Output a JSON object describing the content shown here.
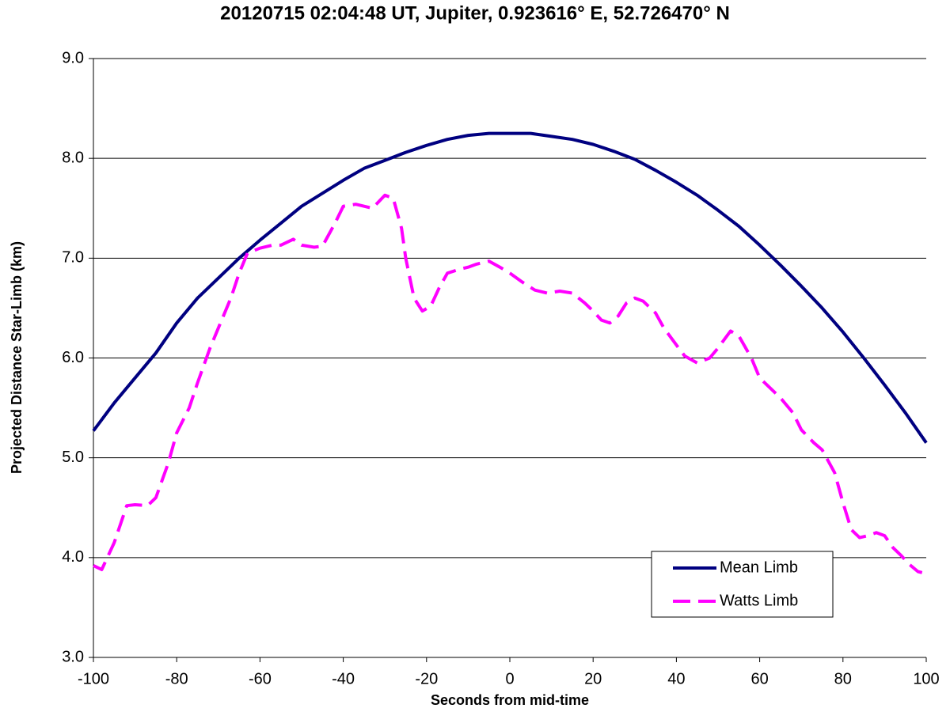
{
  "chart_data": {
    "type": "line",
    "title": "20120715 02:04:48 UT, Jupiter, 0.923616° E, 52.726470° N",
    "x_label": "Seconds from mid-time",
    "y_label": "Projected Distance Star-Limb (km)",
    "xlim": [
      -100,
      100
    ],
    "xticks": [
      -100,
      -80,
      -60,
      -40,
      -20,
      0,
      20,
      40,
      60,
      80,
      100
    ],
    "ylim": [
      3,
      9
    ],
    "yticks": [
      {
        "value": 3,
        "label": "3.0"
      },
      {
        "value": 4,
        "label": "4.0"
      },
      {
        "value": 5,
        "label": "5.0"
      },
      {
        "value": 6,
        "label": "6.0"
      },
      {
        "value": 7,
        "label": "7.0"
      },
      {
        "value": 8,
        "label": "8.0"
      },
      {
        "value": 9,
        "label": "9.0"
      }
    ],
    "grid": true,
    "legend": "lower right",
    "series": [
      {
        "name": "Mean Limb",
        "color": "#000080",
        "dash": false,
        "x": [
          -100,
          -95,
          -90,
          -85,
          -80,
          -75,
          -70,
          -65,
          -60,
          -55,
          -50,
          -45,
          -40,
          -35,
          -30,
          -25,
          -20,
          -15,
          -10,
          -5,
          0,
          5,
          10,
          15,
          20,
          25,
          30,
          35,
          40,
          45,
          50,
          55,
          60,
          65,
          70,
          75,
          80,
          85,
          90,
          95,
          100
        ],
        "values": [
          5.27,
          5.55,
          5.8,
          6.05,
          6.35,
          6.6,
          6.8,
          7.0,
          7.18,
          7.35,
          7.52,
          7.65,
          7.78,
          7.9,
          7.98,
          8.06,
          8.13,
          8.19,
          8.23,
          8.25,
          8.25,
          8.25,
          8.22,
          8.19,
          8.14,
          8.07,
          7.99,
          7.88,
          7.76,
          7.63,
          7.48,
          7.32,
          7.13,
          6.93,
          6.72,
          6.5,
          6.26,
          6.0,
          5.73,
          5.45,
          5.15
        ]
      },
      {
        "name": "Watts Limb",
        "color": "#ff00ff",
        "dash": true,
        "x": [
          -100,
          -98,
          -95,
          -92,
          -90,
          -87,
          -85,
          -82,
          -80,
          -77,
          -75,
          -72,
          -70,
          -67,
          -65,
          -63,
          -60,
          -57,
          -55,
          -52,
          -50,
          -47,
          -45,
          -42,
          -40,
          -37,
          -35,
          -33,
          -30,
          -28,
          -26,
          -25,
          -23,
          -21,
          -19,
          -17,
          -15,
          -12,
          -10,
          -8,
          -5,
          -2,
          0,
          3,
          6,
          9,
          12,
          15,
          18,
          20,
          22,
          24,
          26,
          28,
          30,
          32,
          35,
          37,
          40,
          42,
          45,
          48,
          50,
          53,
          55,
          58,
          60,
          63,
          65,
          68,
          70,
          73,
          75,
          78,
          80,
          82,
          84,
          86,
          88,
          90,
          92,
          94,
          96,
          98,
          99
        ],
        "values": [
          3.92,
          3.88,
          4.15,
          4.52,
          4.53,
          4.52,
          4.6,
          4.95,
          5.25,
          5.5,
          5.75,
          6.1,
          6.3,
          6.6,
          6.85,
          7.05,
          7.1,
          7.13,
          7.13,
          7.19,
          7.13,
          7.11,
          7.12,
          7.35,
          7.52,
          7.54,
          7.52,
          7.5,
          7.63,
          7.6,
          7.3,
          7.0,
          6.6,
          6.47,
          6.52,
          6.7,
          6.85,
          6.89,
          6.91,
          6.94,
          6.97,
          6.9,
          6.85,
          6.76,
          6.68,
          6.65,
          6.67,
          6.65,
          6.55,
          6.47,
          6.38,
          6.35,
          6.42,
          6.55,
          6.6,
          6.57,
          6.45,
          6.3,
          6.13,
          6.02,
          5.95,
          6.0,
          6.1,
          6.27,
          6.22,
          6.0,
          5.8,
          5.68,
          5.6,
          5.45,
          5.28,
          5.15,
          5.08,
          4.85,
          4.55,
          4.28,
          4.2,
          4.22,
          4.25,
          4.22,
          4.1,
          4.02,
          3.93,
          3.86,
          3.85
        ]
      }
    ]
  }
}
